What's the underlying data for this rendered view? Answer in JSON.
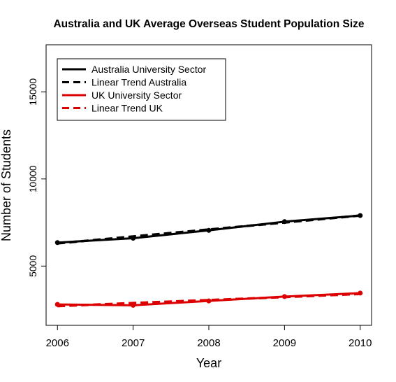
{
  "chart_data": {
    "type": "line",
    "title": "Australia and UK Average Overseas Student Population Size",
    "xlabel": "Year",
    "ylabel": "Number of Students",
    "x": [
      2006,
      2007,
      2008,
      2009,
      2010
    ],
    "x_ticks": [
      "2006",
      "2007",
      "2008",
      "2009",
      "2010"
    ],
    "y_ticks": [
      "5000",
      "10000",
      "15000"
    ],
    "xlim": [
      2005.85,
      2010.15
    ],
    "ylim": [
      1600,
      17700
    ],
    "grid": false,
    "legend_position": "top-left",
    "series": [
      {
        "name": "Australia University Sector",
        "style": "solid",
        "color": "#000000",
        "markers": true,
        "values": [
          6350,
          6600,
          7050,
          7550,
          7900
        ]
      },
      {
        "name": "Linear Trend Australia",
        "style": "dashed",
        "color": "#000000",
        "markers": false,
        "values": [
          6300,
          6700,
          7100,
          7500,
          7900
        ]
      },
      {
        "name": "UK University Sector",
        "style": "solid",
        "color": "#dd0000",
        "markers": true,
        "values": [
          2800,
          2750,
          3000,
          3250,
          3450
        ]
      },
      {
        "name": "Linear Trend UK",
        "style": "dashed",
        "color": "#dd0000",
        "markers": false,
        "values": [
          2700,
          2880,
          3050,
          3220,
          3400
        ]
      }
    ]
  }
}
